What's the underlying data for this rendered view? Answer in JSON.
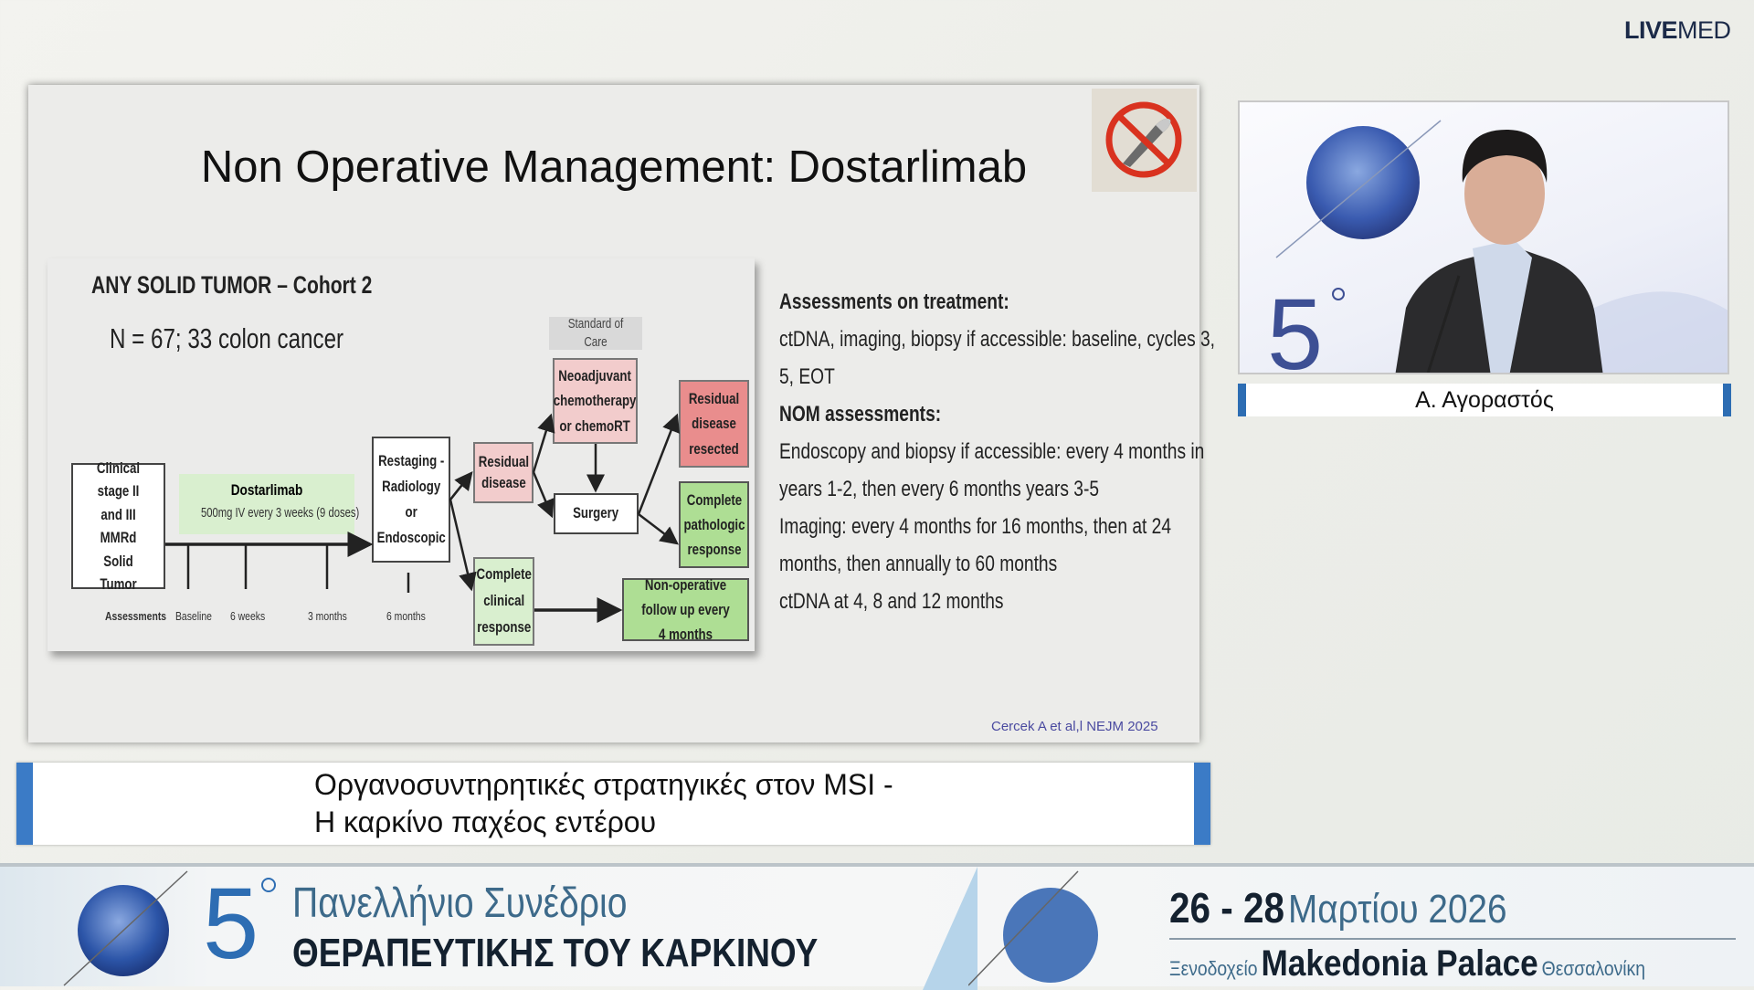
{
  "logo": {
    "text_bold": "LIVE",
    "text_light": "MED"
  },
  "slide": {
    "title": "Non Operative Management: Dostarlimab",
    "icon": "no-surgery-scalpel-icon",
    "diagram": {
      "heading": "ANY SOLID TUMOR – Cohort 2",
      "n_label": "N = 67; 33 colon cancer",
      "boxes": {
        "clinical_stage": "Clinical stage II and III MMRd Solid Tumor",
        "dostarlimab": "Dostarlimab",
        "dostarlimab_dose": "500mg IV every 3 weeks (9 doses)",
        "restaging": "Restaging - Radiology or Endoscopic",
        "residual_disease": "Residual disease",
        "complete_clinical": "Complete clinical response",
        "standard_of_care": "Standard of Care",
        "neoadjuvant": "Neoadjuvant chemotherapy or chemoRT",
        "surgery": "Surgery",
        "residual_resected": "Residual disease resected",
        "complete_pathologic": "Complete pathologic response",
        "non_operative": "Non-operative follow up every 4 months"
      },
      "timeline": [
        "Assessments",
        "Baseline",
        "6 weeks",
        "3 months",
        "6 months"
      ],
      "colors": {
        "pink": "#f2cccc",
        "red": "#e98d8d",
        "light_green": "#d9efcf",
        "green": "#aede94",
        "gray": "#d9d9d9"
      }
    },
    "notes": [
      {
        "text": "Assessments on treatment:",
        "bold": true
      },
      {
        "text": "ctDNA, imaging, biopsy if accessible: baseline, cycles 3,"
      },
      {
        "text": "5, EOT"
      },
      {
        "text": "NOM assessments:",
        "bold": true
      },
      {
        "text": "Endoscopy and biopsy if accessible: every 4 months in"
      },
      {
        "text": "years 1-2, then every 6 months years 3-5"
      },
      {
        "text": "Imaging: every 4 months for 16 months, then at 24"
      },
      {
        "text": "months, then annually to 60 months"
      },
      {
        "text": "ctDNA at 4, 8 and 12 months"
      }
    ],
    "citation": "Cercek  A et al,l NEJM 2025"
  },
  "speaker": {
    "name": "Α. Αγοραστός"
  },
  "talk_title": {
    "line1": "Οργανοσυντηρητικές στρατηγικές στον MSI -",
    "line2": "Η καρκίνο παχέος εντέρου"
  },
  "banner": {
    "number": "5",
    "line1": "Πανελλήνιο Συνέδριο",
    "line2": "ΘΕΡΑΠΕΥΤΙΚΗΣ ΤΟΥ ΚΑΡΚΙΝΟΥ",
    "dates": "26 - 28",
    "month_year": "Μαρτίου 2026",
    "hotel_prefix": "Ξενοδοχείο",
    "hotel": "Makedonia Palace",
    "city": "Θεσσαλονίκη"
  },
  "accent": "#3b7bc6"
}
